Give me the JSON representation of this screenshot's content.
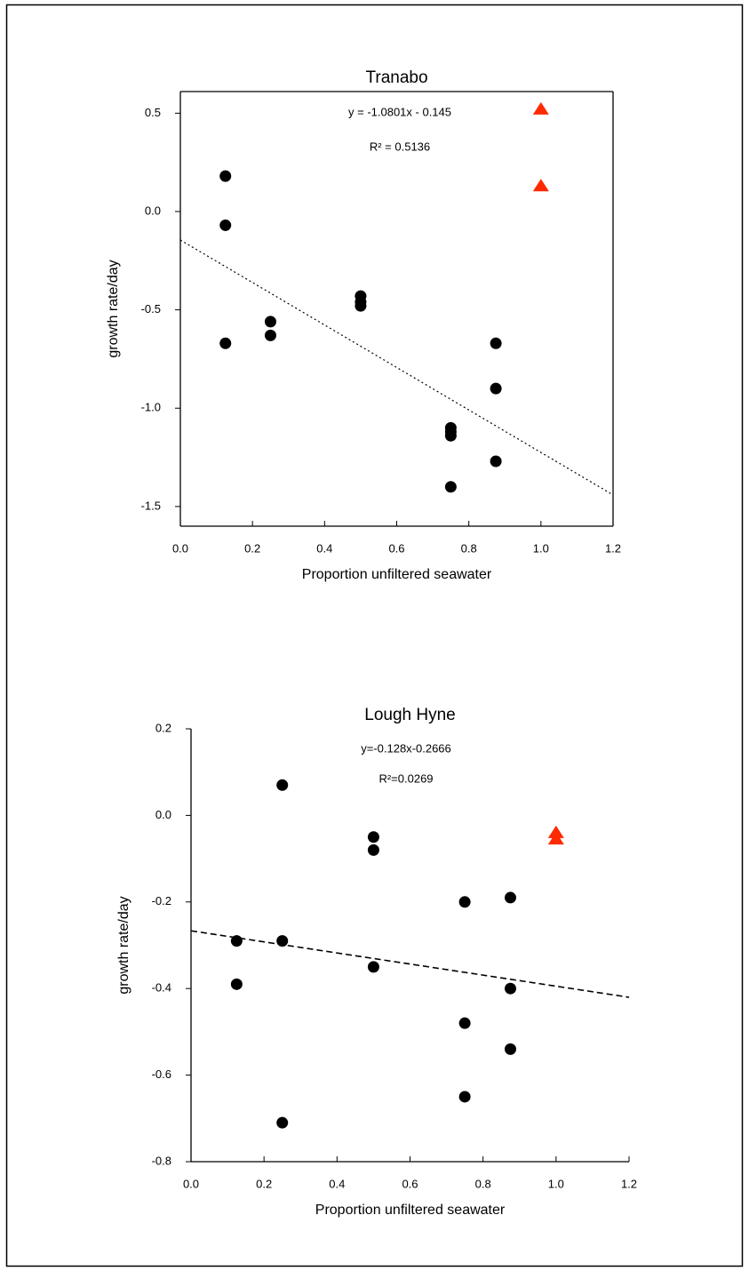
{
  "chart_data": [
    {
      "type": "scatter",
      "title": "Tranabo",
      "xlabel": "Proportion unfiltered seawater",
      "ylabel": "growth rate/day",
      "annotations": [
        "y = -1.0801x - 0.145",
        "R² = 0.5136"
      ],
      "frame": "box",
      "series": [
        {
          "color": "#000000",
          "marker": "circle",
          "x": [
            0.125,
            0.125,
            0.125,
            0.25,
            0.25,
            0.5,
            0.5,
            0.5,
            0.75,
            0.75,
            0.75,
            0.75,
            0.875,
            0.875,
            0.875
          ],
          "values": [
            0.18,
            -0.07,
            -0.67,
            -0.56,
            -0.63,
            -0.43,
            -0.46,
            -0.48,
            -1.1,
            -1.12,
            -1.14,
            -1.4,
            -0.67,
            -0.9,
            -1.27
          ]
        },
        {
          "color": "#ff2a00",
          "marker": "triangle",
          "x": [
            1.0,
            1.0
          ],
          "values": [
            0.52,
            0.13
          ]
        }
      ],
      "trendline": {
        "slope": -1.0801,
        "intercept": -0.145,
        "style": "dotted"
      },
      "xlim": [
        0,
        1.2
      ],
      "ylim": [
        -1.6,
        0.61
      ],
      "xticks": [
        {
          "value": 0,
          "label": "0.0"
        },
        0.2,
        0.4,
        0.6,
        0.8,
        {
          "value": 1,
          "label": "1.0"
        },
        1.2
      ],
      "yticks": [
        0.5,
        {
          "value": 0,
          "label": "0.0"
        },
        -0.5,
        {
          "value": -1,
          "label": "-1.0"
        },
        -1.5
      ]
    },
    {
      "type": "scatter",
      "title": "Lough Hyne",
      "xlabel": "Proportion unfiltered seawater",
      "ylabel": "growth rate/day",
      "annotations": [
        "y=-0.128x-0.2666",
        "R²=0.0269"
      ],
      "frame": "axes",
      "series": [
        {
          "color": "#000000",
          "marker": "circle",
          "x": [
            0.125,
            0.125,
            0.25,
            0.25,
            0.25,
            0.5,
            0.5,
            0.5,
            0.75,
            0.75,
            0.75,
            0.875,
            0.875,
            0.875
          ],
          "values": [
            -0.29,
            -0.39,
            0.07,
            -0.29,
            -0.71,
            -0.05,
            -0.08,
            -0.35,
            -0.2,
            -0.48,
            -0.65,
            -0.19,
            -0.4,
            -0.54
          ]
        },
        {
          "color": "#ff2a00",
          "marker": "triangle",
          "x": [
            1.0,
            1.0
          ],
          "values": [
            -0.04,
            -0.055
          ]
        }
      ],
      "trendline": {
        "slope": -0.128,
        "intercept": -0.2666,
        "style": "dashed"
      },
      "xlim": [
        0,
        1.2
      ],
      "ylim": [
        -0.8,
        0.2
      ],
      "xticks": [
        {
          "value": 0,
          "label": "0.0"
        },
        0.2,
        0.4,
        0.6,
        0.8,
        {
          "value": 1,
          "label": "1.0"
        },
        1.2
      ],
      "yticks": [
        0.2,
        {
          "value": 0,
          "label": "0.0"
        },
        -0.2,
        -0.4,
        -0.6,
        -0.8
      ]
    }
  ]
}
